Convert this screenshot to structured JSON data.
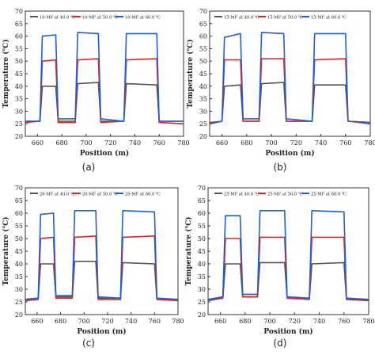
{
  "panels": [
    {
      "caption": "(a)"
    },
    {
      "caption": "(b)"
    },
    {
      "caption": "(c)"
    },
    {
      "caption": "(d)"
    }
  ],
  "colors": {
    "s40": "#555555",
    "s50": "#e02424",
    "s60": "#1f5fd6",
    "axis": "#333333"
  },
  "chart_data": [
    {
      "type": "line",
      "xlabel": "Position (m)",
      "ylabel": "Temperature (℃)",
      "xlim": [
        650,
        780
      ],
      "ylim": [
        20,
        70
      ],
      "xticks": [
        660,
        680,
        700,
        720,
        740,
        760,
        780
      ],
      "yticks": [
        20,
        25,
        30,
        35,
        40,
        45,
        50,
        55,
        60,
        65,
        70
      ],
      "legend_position": "top",
      "series": [
        {
          "name": "10-MF at 40.0 ℃",
          "color_key": "s40",
          "x": [
            650,
            662,
            664,
            675,
            677,
            691,
            693,
            710,
            712,
            731,
            733,
            758,
            760,
            780
          ],
          "y": [
            26,
            26,
            40,
            40,
            26,
            26,
            41,
            41.5,
            26,
            26,
            41,
            40.5,
            26,
            26
          ]
        },
        {
          "name": "10-MF at 50.0 ℃",
          "color_key": "s50",
          "x": [
            650,
            662,
            664,
            675,
            677,
            691,
            693,
            710,
            712,
            731,
            733,
            758,
            760,
            780
          ],
          "y": [
            25.5,
            26,
            50,
            50.5,
            25.5,
            25.5,
            50.5,
            51,
            25.5,
            26,
            50.5,
            51,
            25.5,
            25
          ]
        },
        {
          "name": "10-MF at 60.0 ℃",
          "color_key": "s60",
          "x": [
            650,
            662,
            664,
            675,
            677,
            691,
            693,
            710,
            712,
            731,
            733,
            758,
            760,
            780
          ],
          "y": [
            26,
            26,
            60,
            60.5,
            27,
            27,
            61.5,
            61,
            27,
            26,
            61,
            61,
            26,
            26
          ]
        }
      ]
    },
    {
      "type": "line",
      "xlabel": "Position (m)",
      "ylabel": "Temperature (℃)",
      "xlim": [
        650,
        780
      ],
      "ylim": [
        20,
        70
      ],
      "xticks": [
        660,
        680,
        700,
        720,
        740,
        760,
        780
      ],
      "yticks": [
        20,
        25,
        30,
        35,
        40,
        45,
        50,
        55,
        60,
        65,
        70
      ],
      "legend_position": "top",
      "series": [
        {
          "name": "15-MF at 40.0 ℃",
          "color_key": "s40",
          "x": [
            650,
            660,
            662,
            675,
            677,
            690,
            692,
            710,
            712,
            733,
            735,
            760,
            762,
            780
          ],
          "y": [
            25,
            26,
            40,
            40.5,
            26,
            26,
            41,
            41.5,
            26,
            26,
            40.5,
            40.5,
            26,
            25.5
          ]
        },
        {
          "name": "15-MF at 50.0 ℃",
          "color_key": "s50",
          "x": [
            650,
            660,
            662,
            675,
            677,
            690,
            692,
            710,
            712,
            733,
            735,
            760,
            762,
            780
          ],
          "y": [
            25.5,
            26,
            50.5,
            50.5,
            26,
            26,
            51,
            51,
            26,
            26,
            50.5,
            51,
            26,
            25
          ]
        },
        {
          "name": "15-MF at 60.0 ℃",
          "color_key": "s60",
          "x": [
            650,
            660,
            662,
            675,
            677,
            690,
            692,
            710,
            712,
            733,
            735,
            760,
            762,
            780
          ],
          "y": [
            25,
            26,
            59.5,
            61,
            27,
            27,
            61.5,
            61,
            27,
            26,
            61,
            61,
            26,
            25.5
          ]
        }
      ]
    },
    {
      "type": "line",
      "xlabel": "Position (m)",
      "ylabel": "Temperature (℃)",
      "xlim": [
        650,
        780
      ],
      "ylim": [
        20,
        70
      ],
      "xticks": [
        660,
        680,
        700,
        720,
        740,
        760,
        780
      ],
      "yticks": [
        20,
        25,
        30,
        35,
        40,
        45,
        50,
        55,
        60,
        65,
        70
      ],
      "legend_position": "top",
      "series": [
        {
          "name": "20-MF at 40.0 ℃",
          "color_key": "s40",
          "x": [
            650,
            661,
            663,
            674,
            676,
            690,
            692,
            710,
            712,
            731,
            733,
            760,
            762,
            780
          ],
          "y": [
            26,
            26.5,
            40,
            40,
            27,
            27,
            41,
            41,
            26.5,
            26,
            40.5,
            40,
            26,
            26
          ]
        },
        {
          "name": "20-MF at 50.0 ℃",
          "color_key": "s50",
          "x": [
            650,
            661,
            663,
            674,
            676,
            690,
            692,
            710,
            712,
            731,
            733,
            760,
            762,
            780
          ],
          "y": [
            25.5,
            26,
            50,
            50.5,
            26.5,
            26.5,
            50.5,
            51,
            26,
            26,
            50.5,
            51,
            26,
            25.5
          ]
        },
        {
          "name": "20-MF at 60.0 ℃",
          "color_key": "s60",
          "x": [
            650,
            661,
            663,
            674,
            676,
            690,
            692,
            710,
            712,
            731,
            733,
            760,
            762,
            780
          ],
          "y": [
            26,
            26.5,
            59.5,
            60,
            27.5,
            27.5,
            61,
            61,
            27,
            26.5,
            61,
            60.5,
            26.5,
            26
          ]
        }
      ]
    },
    {
      "type": "line",
      "xlabel": "Position  (m)",
      "ylabel": "Temperature  (℃)",
      "xlim": [
        650,
        780
      ],
      "ylim": [
        20,
        70
      ],
      "xticks": [
        660,
        680,
        700,
        720,
        740,
        760,
        780
      ],
      "yticks": [
        20,
        25,
        30,
        35,
        40,
        45,
        50,
        55,
        60,
        65,
        70
      ],
      "legend_position": "top",
      "series": [
        {
          "name": "25-MF at 40.0 ℃",
          "color_key": "s40",
          "x": [
            650,
            662,
            664,
            676,
            678,
            690,
            692,
            712,
            714,
            732,
            734,
            760,
            762,
            780
          ],
          "y": [
            25.5,
            26.5,
            40,
            40,
            27,
            27,
            40.5,
            40.5,
            26.5,
            26,
            40,
            40.5,
            26,
            25.5
          ]
        },
        {
          "name": "25-MF at 50.0 ℃",
          "color_key": "s50",
          "x": [
            650,
            662,
            664,
            676,
            678,
            690,
            692,
            712,
            714,
            732,
            734,
            760,
            762,
            780
          ],
          "y": [
            26,
            26.5,
            50,
            50,
            27,
            27,
            50.5,
            50.5,
            26.5,
            26,
            50.5,
            50.5,
            26,
            26
          ]
        },
        {
          "name": "25-MF at 60.0 ℃",
          "color_key": "s60",
          "x": [
            650,
            662,
            664,
            676,
            678,
            690,
            692,
            712,
            714,
            732,
            734,
            760,
            762,
            780
          ],
          "y": [
            26,
            27,
            59,
            59,
            28,
            28,
            61,
            61,
            27,
            26.5,
            61,
            60.5,
            26.5,
            26
          ]
        }
      ]
    }
  ]
}
